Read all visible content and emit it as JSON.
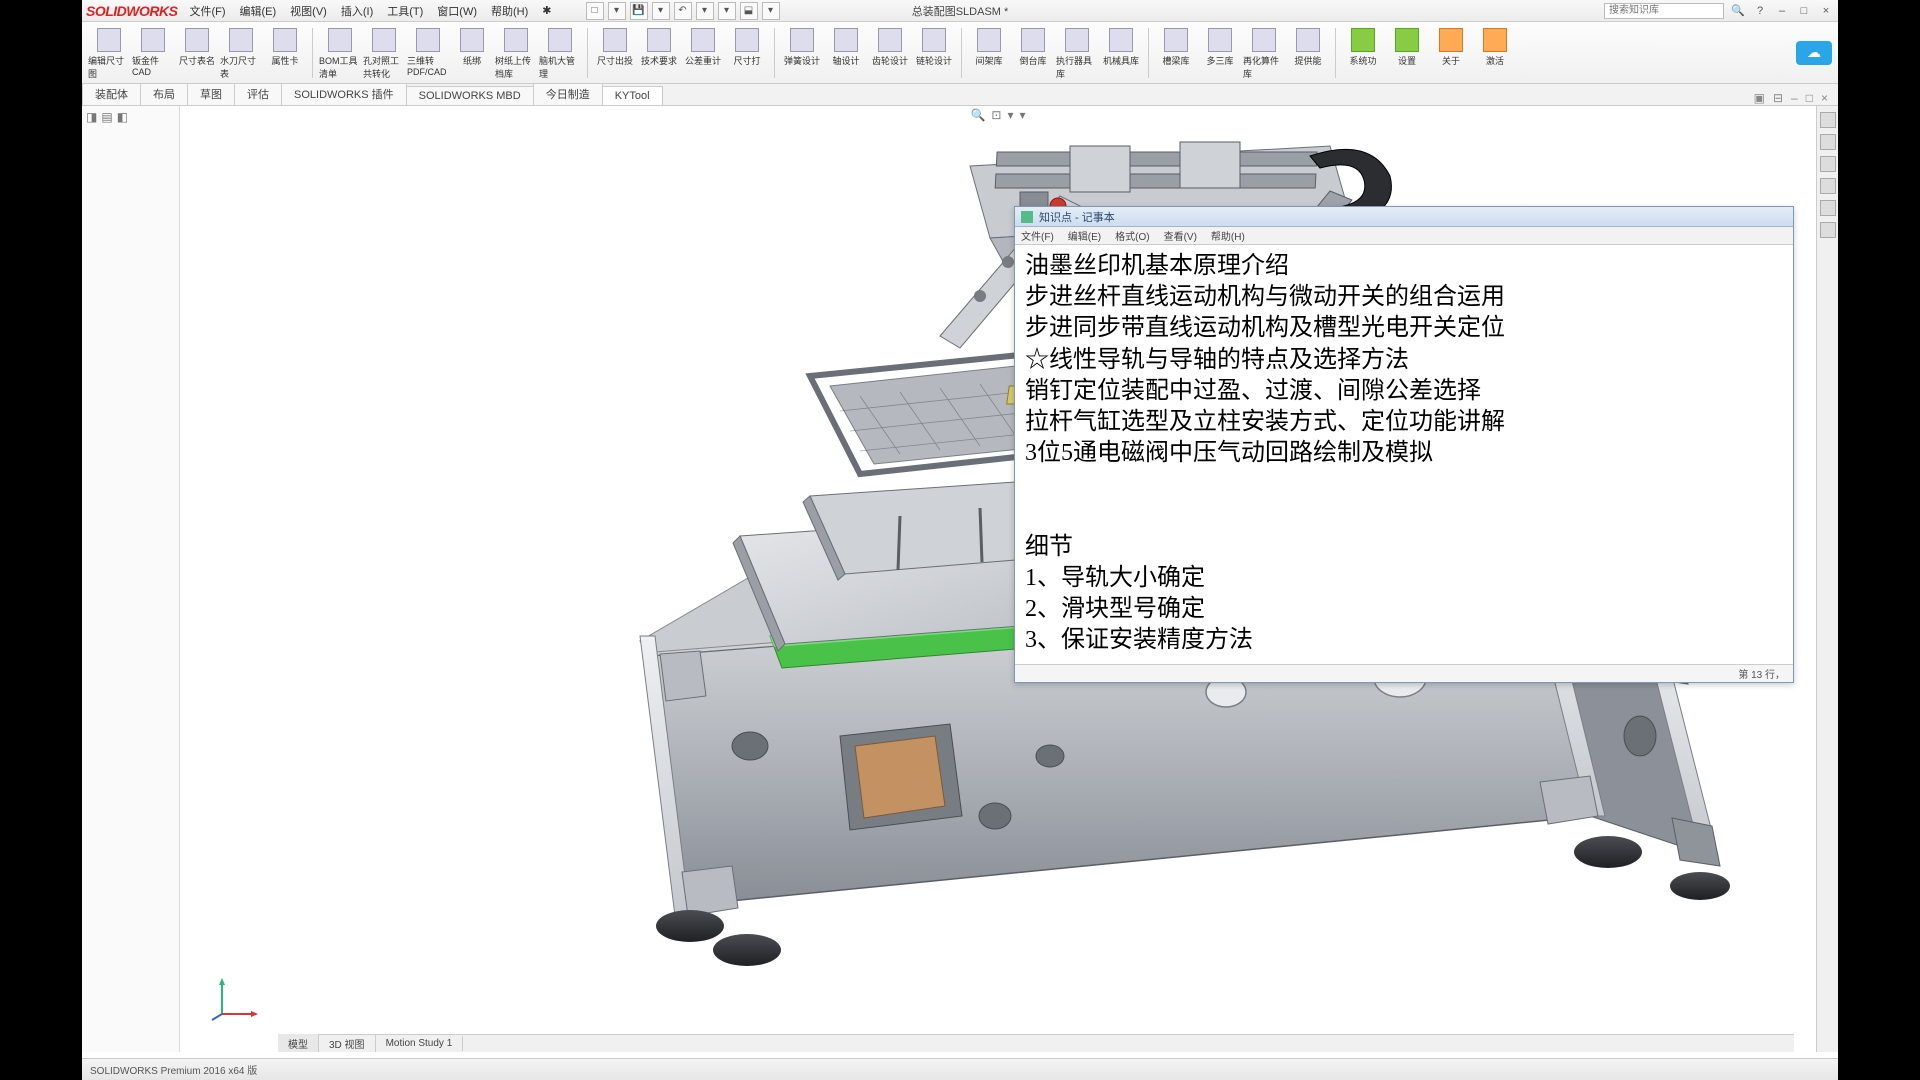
{
  "app": {
    "logo_text": "SOLIDWORKS",
    "doc_title": "总装配图SLDASM *",
    "search_placeholder": "搜索知识库"
  },
  "menus": [
    "文件(F)",
    "编辑(E)",
    "视图(V)",
    "插入(I)",
    "工具(T)",
    "窗口(W)",
    "帮助(H)",
    "✱"
  ],
  "ribbon": [
    {
      "label": "编辑尺寸图"
    },
    {
      "label": "钣金件CAD"
    },
    {
      "label": "尺寸表名"
    },
    {
      "label": "水刀尺寸表"
    },
    {
      "label": "属性卡"
    },
    {
      "sep": true
    },
    {
      "label": "BOM工具清单"
    },
    {
      "label": "孔对照工共转化"
    },
    {
      "label": "三维转PDF/CAD"
    },
    {
      "label": "纸绑"
    },
    {
      "label": "树纸上传档库"
    },
    {
      "label": "脑机大管理"
    },
    {
      "sep": true
    },
    {
      "label": "尺寸出投"
    },
    {
      "label": "技术要求"
    },
    {
      "label": "公差重计"
    },
    {
      "label": "尺寸打"
    },
    {
      "sep": true
    },
    {
      "label": "弹簧设计"
    },
    {
      "label": "轴设计"
    },
    {
      "label": "齿轮设计"
    },
    {
      "label": "链轮设计"
    },
    {
      "sep": true
    },
    {
      "label": "间架库"
    },
    {
      "label": "倒台库"
    },
    {
      "label": "执行器具库"
    },
    {
      "label": "机械具库"
    },
    {
      "sep": true
    },
    {
      "label": "槽梁库"
    },
    {
      "label": "多三库"
    },
    {
      "label": "再化算件库"
    },
    {
      "label": "提供能"
    },
    {
      "sep": true
    },
    {
      "label": "系统功",
      "cls": "green"
    },
    {
      "label": "设置",
      "cls": "green"
    },
    {
      "label": "关于",
      "cls": "orange"
    },
    {
      "label": "激活",
      "cls": "orange"
    }
  ],
  "tabs": [
    "装配体",
    "布局",
    "草图",
    "评估",
    "SOLIDWORKS 插件",
    "SOLIDWORKS MBD",
    "今日制造",
    "KYTool"
  ],
  "active_tab": 7,
  "bottom_tabs": [
    "模型",
    "3D 视图",
    "Motion Study 1"
  ],
  "notepad": {
    "title": "知识点 - 记事本",
    "menus": [
      "文件(F)",
      "编辑(E)",
      "格式(O)",
      "查看(V)",
      "帮助(H)"
    ],
    "body": "油墨丝印机基本原理介绍\n步进丝杆直线运动机构与微动开关的组合运用\n步进同步带直线运动机构及槽型光电开关定位\n☆线性导轨与导轴的特点及选择方法\n销钉定位装配中过盈、过渡、间隙公差选择\n拉杆气缸选型及立柱安装方式、定位功能讲解\n3位5通电磁阀中压气动回路绘制及模拟\n\n\n细节\n1、导轨大小确定\n2、滑块型号确定\n3、保证安装精度方法",
    "status": "第 13 行，"
  },
  "statusbar": "SOLIDWORKS Premium 2016 x64 版",
  "colors": {
    "metal_light": "#cfd2d6",
    "metal_mid": "#a7abb2",
    "metal_dark": "#7d828b",
    "metal_shadow": "#5a5f66",
    "alu_edge": "#e3e5e8",
    "green_bar": "#4ac24a",
    "foot_dark": "#2b2d30",
    "wood": "#c49262",
    "shaft_red": "#cc3b2e"
  }
}
